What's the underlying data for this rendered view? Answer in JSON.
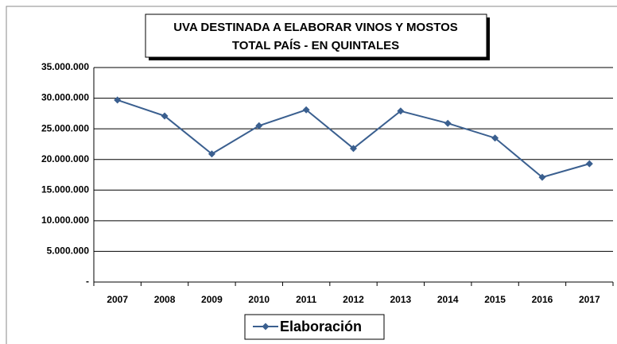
{
  "chart_data": {
    "type": "line",
    "title": [
      "UVA DESTINADA A ELABORAR VINOS Y MOSTOS",
      "TOTAL PAÍS - EN QUINTALES"
    ],
    "categories": [
      "2007",
      "2008",
      "2009",
      "2010",
      "2011",
      "2012",
      "2013",
      "2014",
      "2015",
      "2016",
      "2017"
    ],
    "series": [
      {
        "name": "Elaboración",
        "color": "#3a5f8f",
        "values": [
          29700000,
          27100000,
          20900000,
          25500000,
          28100000,
          21800000,
          27900000,
          25900000,
          23500000,
          17100000,
          19300000
        ]
      }
    ],
    "ylim": [
      0,
      35000000
    ],
    "yticks": [
      {
        "value": 0,
        "label": "-"
      },
      {
        "value": 5000000,
        "label": "5.000.000"
      },
      {
        "value": 10000000,
        "label": "10.000.000"
      },
      {
        "value": 15000000,
        "label": "15.000.000"
      },
      {
        "value": 20000000,
        "label": "20.000.000"
      },
      {
        "value": 25000000,
        "label": "25.000.000"
      },
      {
        "value": 30000000,
        "label": "30.000.000"
      },
      {
        "value": 35000000,
        "label": "35.000.000"
      }
    ],
    "grid": true,
    "legend": "bottom"
  }
}
